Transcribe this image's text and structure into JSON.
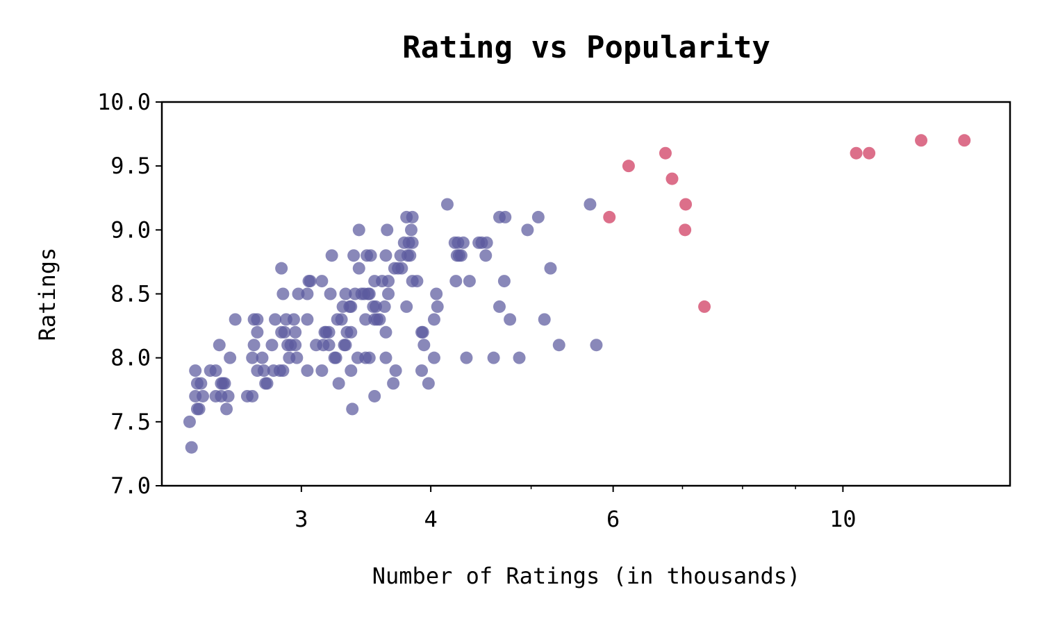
{
  "chart_data": {
    "type": "scatter",
    "title": "Rating vs Popularity",
    "xlabel": "Number of Ratings (in thousands)",
    "ylabel": "Ratings",
    "x_scale": "log",
    "xlim": [
      2.2,
      14.5
    ],
    "ylim": [
      7.0,
      10.0
    ],
    "x_ticks": [
      {
        "value": 3,
        "label": "3"
      },
      {
        "value": 4,
        "label": "4"
      },
      {
        "value": 6,
        "label": "6"
      },
      {
        "value": 10,
        "label": "10"
      }
    ],
    "x_minor_ticks": [
      5,
      7,
      8,
      9
    ],
    "y_ticks": [
      {
        "value": 7.0,
        "label": "7.0"
      },
      {
        "value": 7.5,
        "label": "7.5"
      },
      {
        "value": 8.0,
        "label": "8.0"
      },
      {
        "value": 8.5,
        "label": "8.5"
      },
      {
        "value": 9.0,
        "label": "9.0"
      },
      {
        "value": 9.5,
        "label": "9.5"
      },
      {
        "value": 10.0,
        "label": "10.0"
      }
    ],
    "grid": false,
    "legend": "none",
    "series": [
      {
        "color": "#5b5a9e",
        "opacity": 0.72,
        "points": [
          [
            2.35,
            7.3
          ],
          [
            2.34,
            7.5
          ],
          [
            2.38,
            7.6
          ],
          [
            2.39,
            7.6
          ],
          [
            2.37,
            7.7
          ],
          [
            2.41,
            7.7
          ],
          [
            2.38,
            7.8
          ],
          [
            2.4,
            7.8
          ],
          [
            2.37,
            7.9
          ],
          [
            2.45,
            7.9
          ],
          [
            2.48,
            7.9
          ],
          [
            2.48,
            7.7
          ],
          [
            2.51,
            7.7
          ],
          [
            2.51,
            7.8
          ],
          [
            2.52,
            7.8
          ],
          [
            2.53,
            7.8
          ],
          [
            2.55,
            7.7
          ],
          [
            2.54,
            7.6
          ],
          [
            2.56,
            8.0
          ],
          [
            2.5,
            8.1
          ],
          [
            2.59,
            8.3
          ],
          [
            2.66,
            7.7
          ],
          [
            2.69,
            7.7
          ],
          [
            2.69,
            8.0
          ],
          [
            2.7,
            8.3
          ],
          [
            2.72,
            8.3
          ],
          [
            2.7,
            8.1
          ],
          [
            2.72,
            8.2
          ],
          [
            2.72,
            7.9
          ],
          [
            2.75,
            8.0
          ],
          [
            2.76,
            7.9
          ],
          [
            2.77,
            7.8
          ],
          [
            2.78,
            7.8
          ],
          [
            2.81,
            8.1
          ],
          [
            2.82,
            7.9
          ],
          [
            2.83,
            8.3
          ],
          [
            2.86,
            7.9
          ],
          [
            2.88,
            7.9
          ],
          [
            2.87,
            8.2
          ],
          [
            2.89,
            8.2
          ],
          [
            2.9,
            8.3
          ],
          [
            2.91,
            8.1
          ],
          [
            2.92,
            8.0
          ],
          [
            2.93,
            8.1
          ],
          [
            2.95,
            8.3
          ],
          [
            2.96,
            8.2
          ],
          [
            2.96,
            8.1
          ],
          [
            2.97,
            8.0
          ],
          [
            2.88,
            8.5
          ],
          [
            2.87,
            8.7
          ],
          [
            2.98,
            8.5
          ],
          [
            3.04,
            8.5
          ],
          [
            3.05,
            8.6
          ],
          [
            3.06,
            8.6
          ],
          [
            3.04,
            8.3
          ],
          [
            3.04,
            7.9
          ],
          [
            3.1,
            8.1
          ],
          [
            3.14,
            8.6
          ],
          [
            3.14,
            7.9
          ],
          [
            3.15,
            8.1
          ],
          [
            3.16,
            8.2
          ],
          [
            3.17,
            8.2
          ],
          [
            3.19,
            8.2
          ],
          [
            3.19,
            8.1
          ],
          [
            3.2,
            8.5
          ],
          [
            3.21,
            8.8
          ],
          [
            3.23,
            8.0
          ],
          [
            3.24,
            8.0
          ],
          [
            3.25,
            8.3
          ],
          [
            3.26,
            7.8
          ],
          [
            3.28,
            8.3
          ],
          [
            3.29,
            8.4
          ],
          [
            3.3,
            8.1
          ],
          [
            3.31,
            8.1
          ],
          [
            3.31,
            8.5
          ],
          [
            3.32,
            8.2
          ],
          [
            3.34,
            8.4
          ],
          [
            3.35,
            8.2
          ],
          [
            3.35,
            8.4
          ],
          [
            3.35,
            7.9
          ],
          [
            3.36,
            7.6
          ],
          [
            3.37,
            8.8
          ],
          [
            3.38,
            8.5
          ],
          [
            3.4,
            8.0
          ],
          [
            3.41,
            8.7
          ],
          [
            3.41,
            9.0
          ],
          [
            3.43,
            8.5
          ],
          [
            3.45,
            8.5
          ],
          [
            3.46,
            8.3
          ],
          [
            3.46,
            8.0
          ],
          [
            3.47,
            8.8
          ],
          [
            3.48,
            8.5
          ],
          [
            3.49,
            8.5
          ],
          [
            3.49,
            8.0
          ],
          [
            3.5,
            8.8
          ],
          [
            3.52,
            8.4
          ],
          [
            3.53,
            8.3
          ],
          [
            3.53,
            8.6
          ],
          [
            3.53,
            7.7
          ],
          [
            3.54,
            8.4
          ],
          [
            3.55,
            8.3
          ],
          [
            3.57,
            8.3
          ],
          [
            3.59,
            8.6
          ],
          [
            3.61,
            8.4
          ],
          [
            3.62,
            8.2
          ],
          [
            3.62,
            8.0
          ],
          [
            3.62,
            8.8
          ],
          [
            3.63,
            9.0
          ],
          [
            3.64,
            8.6
          ],
          [
            3.64,
            8.5
          ],
          [
            3.68,
            7.8
          ],
          [
            3.69,
            8.7
          ],
          [
            3.7,
            7.9
          ],
          [
            3.72,
            8.7
          ],
          [
            3.74,
            8.8
          ],
          [
            3.75,
            8.7
          ],
          [
            3.77,
            8.9
          ],
          [
            3.79,
            9.1
          ],
          [
            3.79,
            8.4
          ],
          [
            3.8,
            8.8
          ],
          [
            3.81,
            8.9
          ],
          [
            3.82,
            8.8
          ],
          [
            3.83,
            9.0
          ],
          [
            3.84,
            9.1
          ],
          [
            3.84,
            8.9
          ],
          [
            3.84,
            8.6
          ],
          [
            3.88,
            8.6
          ],
          [
            3.92,
            8.2
          ],
          [
            3.93,
            8.2
          ],
          [
            3.92,
            7.9
          ],
          [
            3.94,
            8.1
          ],
          [
            3.98,
            7.8
          ],
          [
            4.03,
            8.0
          ],
          [
            4.03,
            8.3
          ],
          [
            4.05,
            8.5
          ],
          [
            4.06,
            8.4
          ],
          [
            4.15,
            9.2
          ],
          [
            4.22,
            8.9
          ],
          [
            4.23,
            8.6
          ],
          [
            4.24,
            8.8
          ],
          [
            4.25,
            8.9
          ],
          [
            4.26,
            8.8
          ],
          [
            4.28,
            8.8
          ],
          [
            4.3,
            8.9
          ],
          [
            4.33,
            8.0
          ],
          [
            4.36,
            8.6
          ],
          [
            4.45,
            8.9
          ],
          [
            4.48,
            8.9
          ],
          [
            4.52,
            8.8
          ],
          [
            4.53,
            8.9
          ],
          [
            4.6,
            8.0
          ],
          [
            4.66,
            9.1
          ],
          [
            4.66,
            8.4
          ],
          [
            4.71,
            8.6
          ],
          [
            4.72,
            9.1
          ],
          [
            4.77,
            8.3
          ],
          [
            4.87,
            8.0
          ],
          [
            4.96,
            9.0
          ],
          [
            5.08,
            9.1
          ],
          [
            5.15,
            8.3
          ],
          [
            5.22,
            8.7
          ],
          [
            5.32,
            8.1
          ],
          [
            5.7,
            9.2
          ],
          [
            5.78,
            8.1
          ]
        ]
      },
      {
        "color": "#dc6f8a",
        "opacity": 1.0,
        "points": [
          [
            5.95,
            9.1
          ],
          [
            6.21,
            9.5
          ],
          [
            6.74,
            9.6
          ],
          [
            6.84,
            9.4
          ],
          [
            7.05,
            9.2
          ],
          [
            7.04,
            9.0
          ],
          [
            7.35,
            8.4
          ],
          [
            10.3,
            9.6
          ],
          [
            10.6,
            9.6
          ],
          [
            11.9,
            9.7
          ],
          [
            13.1,
            9.7
          ]
        ]
      }
    ]
  }
}
